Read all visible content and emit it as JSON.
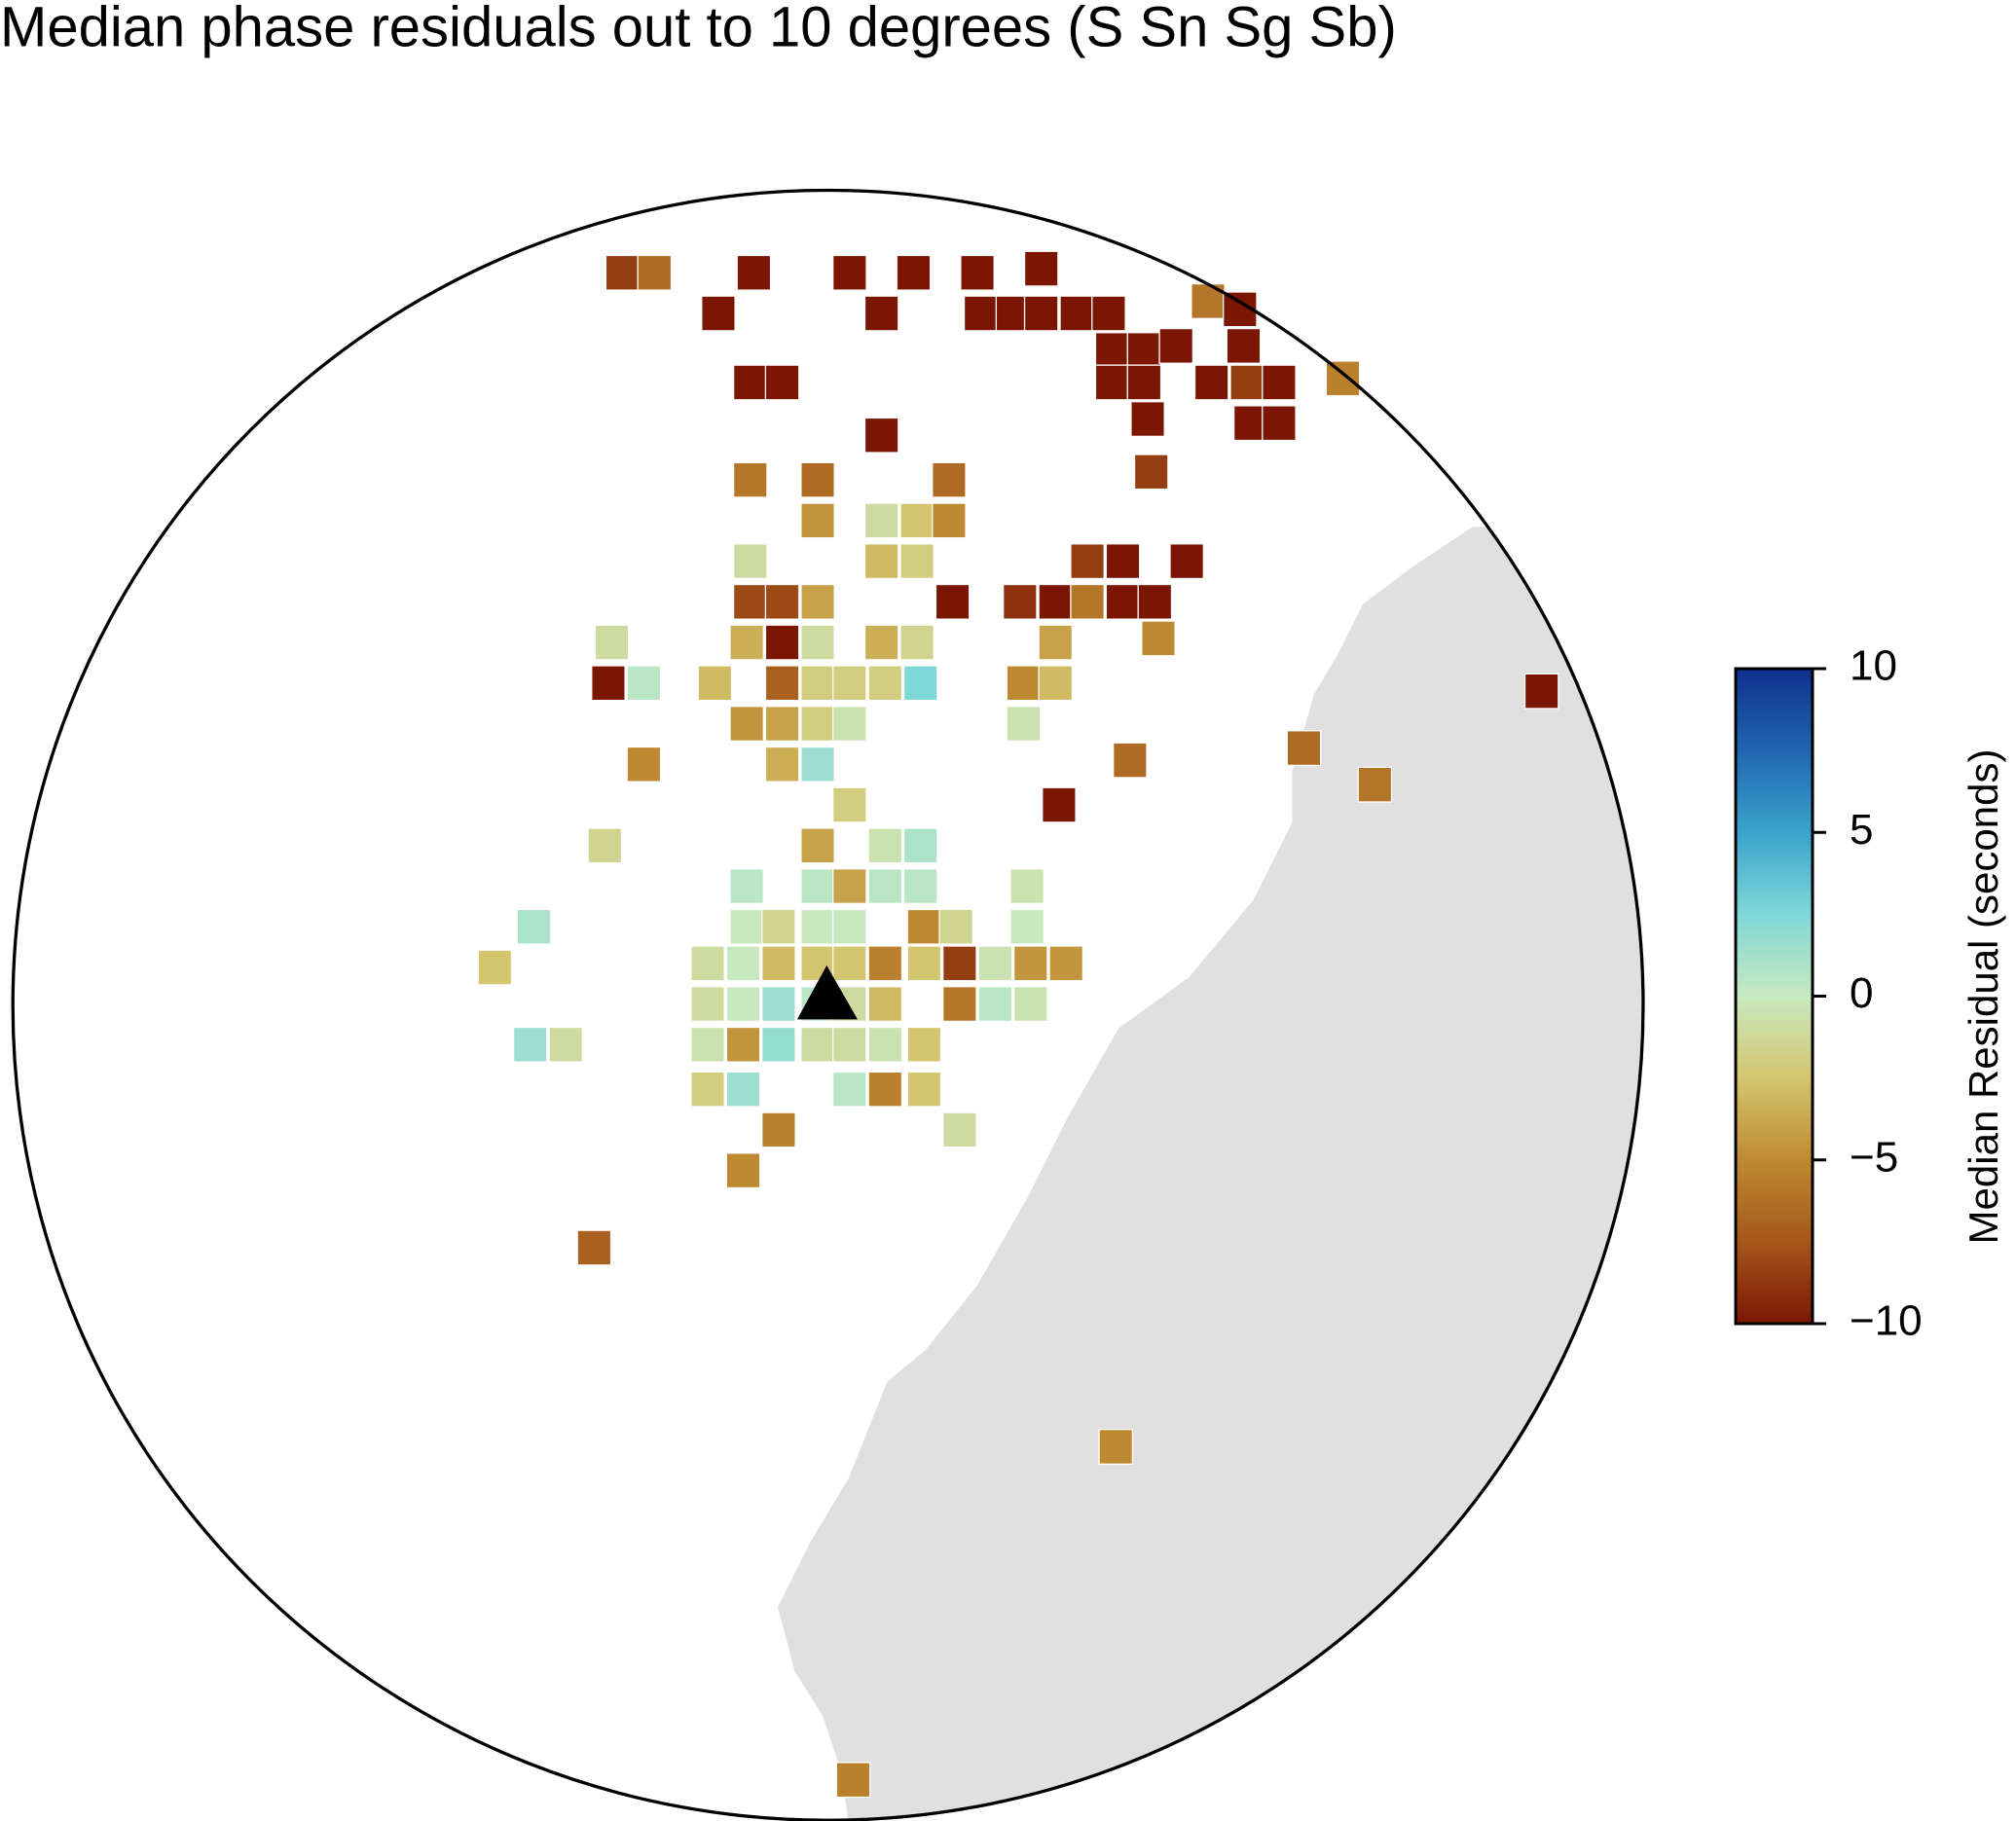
{
  "chart_data": {
    "type": "map",
    "title": "Median phase residuals out to 10 degrees (S Sn Sg Sb)",
    "colorbar_label": "Median Residual (seconds)",
    "clim": [
      -10,
      10
    ],
    "colorbar_ticks": [
      {
        "value": -10,
        "label": "−10"
      },
      {
        "value": -5,
        "label": "−5"
      },
      0,
      5,
      10
    ],
    "colormap": [
      "#7b1603",
      "#a5571b",
      "#be8a31",
      "#d4c66f",
      "#c8e9c0",
      "#7fd8d8",
      "#3ba3cc",
      "#2066b0",
      "#10308e"
    ],
    "land_color": "#e0e0e0",
    "cells": [
      {
        "col": -5.5,
        "row": -18,
        "value": -8.5
      },
      {
        "col": -4.6,
        "row": -18,
        "value": -6.5
      },
      {
        "col": -1.8,
        "row": -18,
        "value": -10
      },
      {
        "col": 0.9,
        "row": -18,
        "value": -10
      },
      {
        "col": 2.7,
        "row": -18,
        "value": -10
      },
      {
        "col": 4.5,
        "row": -18,
        "value": -10
      },
      {
        "col": 6.3,
        "row": -18.1,
        "value": -10
      },
      {
        "col": -2.8,
        "row": -17,
        "value": -10
      },
      {
        "col": 1.8,
        "row": -17,
        "value": -10
      },
      {
        "col": 4.6,
        "row": -17,
        "value": -10
      },
      {
        "col": 5.5,
        "row": -17,
        "value": -10
      },
      {
        "col": 6.3,
        "row": -17,
        "value": -10
      },
      {
        "col": 7.3,
        "row": -17,
        "value": -10
      },
      {
        "col": 8.2,
        "row": -17,
        "value": -10
      },
      {
        "col": 11.0,
        "row": -17.3,
        "value": -6
      },
      {
        "col": 11.9,
        "row": -17.1,
        "value": -10
      },
      {
        "col": 8.3,
        "row": -16.1,
        "value": -10
      },
      {
        "col": 9.2,
        "row": -16.1,
        "value": -10
      },
      {
        "col": 10.1,
        "row": -16.2,
        "value": -10
      },
      {
        "col": 12.0,
        "row": -16.2,
        "value": -10
      },
      {
        "col": -1.9,
        "row": -15.3,
        "value": -10
      },
      {
        "col": -1.0,
        "row": -15.3,
        "value": -10
      },
      {
        "col": 8.3,
        "row": -15.3,
        "value": -10
      },
      {
        "col": 9.2,
        "row": -15.3,
        "value": -10
      },
      {
        "col": 11.1,
        "row": -15.3,
        "value": -10
      },
      {
        "col": 12.1,
        "row": -15.3,
        "value": -8.5
      },
      {
        "col": 13.0,
        "row": -15.3,
        "value": -10
      },
      {
        "col": 14.8,
        "row": -15.4,
        "value": -5.5
      },
      {
        "col": 9.3,
        "row": -14.4,
        "value": -10
      },
      {
        "col": 12.2,
        "row": -14.3,
        "value": -10
      },
      {
        "col": 13.0,
        "row": -14.3,
        "value": -10
      },
      {
        "col": 1.8,
        "row": -14.0,
        "value": -10
      },
      {
        "col": 9.4,
        "row": -13.1,
        "value": -8.5
      },
      {
        "col": -1.9,
        "row": -12.9,
        "value": -6
      },
      {
        "col": 0,
        "row": -12.9,
        "value": -6.5
      },
      {
        "col": 3.7,
        "row": -12.9,
        "value": -6.5
      },
      {
        "col": 0,
        "row": -11.9,
        "value": -4.5
      },
      {
        "col": 1.8,
        "row": -11.9,
        "value": -1
      },
      {
        "col": 2.8,
        "row": -11.9,
        "value": -2.5
      },
      {
        "col": 3.7,
        "row": -11.9,
        "value": -5
      },
      {
        "col": -1.9,
        "row": -10.9,
        "value": -1
      },
      {
        "col": 1.8,
        "row": -10.9,
        "value": -3
      },
      {
        "col": 2.8,
        "row": -10.9,
        "value": -2
      },
      {
        "col": 7.6,
        "row": -10.9,
        "value": -8.5
      },
      {
        "col": 8.6,
        "row": -10.9,
        "value": -10
      },
      {
        "col": 10.4,
        "row": -10.9,
        "value": -10
      },
      {
        "col": -1.9,
        "row": -9.9,
        "value": -8
      },
      {
        "col": -1.0,
        "row": -9.9,
        "value": -8
      },
      {
        "col": 0,
        "row": -9.9,
        "value": -4
      },
      {
        "col": 3.8,
        "row": -9.9,
        "value": -10
      },
      {
        "col": 5.7,
        "row": -9.9,
        "value": -9
      },
      {
        "col": 6.7,
        "row": -9.9,
        "value": -10
      },
      {
        "col": 7.6,
        "row": -9.9,
        "value": -6
      },
      {
        "col": 8.6,
        "row": -9.9,
        "value": -10
      },
      {
        "col": 9.5,
        "row": -9.9,
        "value": -10
      },
      {
        "col": -5.8,
        "row": -8.9,
        "value": -1
      },
      {
        "col": -2.0,
        "row": -8.9,
        "value": -3.5
      },
      {
        "col": -1.0,
        "row": -8.9,
        "value": -10
      },
      {
        "col": 0,
        "row": -8.9,
        "value": -1
      },
      {
        "col": 1.8,
        "row": -8.9,
        "value": -3.5
      },
      {
        "col": 2.8,
        "row": -8.9,
        "value": -1.5
      },
      {
        "col": 6.7,
        "row": -8.9,
        "value": -4
      },
      {
        "col": 9.6,
        "row": -9.0,
        "value": -5
      },
      {
        "col": -5.9,
        "row": -7.9,
        "value": -10
      },
      {
        "col": -4.9,
        "row": -7.9,
        "value": 0.5
      },
      {
        "col": -2.9,
        "row": -7.9,
        "value": -3
      },
      {
        "col": -1.0,
        "row": -7.9,
        "value": -7
      },
      {
        "col": 0,
        "row": -7.9,
        "value": -2
      },
      {
        "col": 0.9,
        "row": -7.9,
        "value": -2
      },
      {
        "col": 1.9,
        "row": -7.9,
        "value": -2
      },
      {
        "col": 2.9,
        "row": -7.9,
        "value": 2.5
      },
      {
        "col": 5.8,
        "row": -7.9,
        "value": -5
      },
      {
        "col": 6.7,
        "row": -7.9,
        "value": -3
      },
      {
        "col": 20.4,
        "row": -7.7,
        "value": -10
      },
      {
        "col": -2.0,
        "row": -6.9,
        "value": -4.5
      },
      {
        "col": -1.0,
        "row": -6.9,
        "value": -4
      },
      {
        "col": 0,
        "row": -6.9,
        "value": -2
      },
      {
        "col": 0.9,
        "row": -6.9,
        "value": -0.5
      },
      {
        "col": 5.8,
        "row": -6.9,
        "value": -0.5
      },
      {
        "col": -4.9,
        "row": -5.9,
        "value": -5
      },
      {
        "col": -1.0,
        "row": -5.9,
        "value": -3.5
      },
      {
        "col": 0,
        "row": -5.9,
        "value": 1.5
      },
      {
        "col": 8.8,
        "row": -6.0,
        "value": -6.5
      },
      {
        "col": 13.7,
        "row": -6.3,
        "value": -6.5
      },
      {
        "col": 15.7,
        "row": -5.4,
        "value": -6
      },
      {
        "col": 0.9,
        "row": -4.9,
        "value": -2
      },
      {
        "col": 6.8,
        "row": -4.9,
        "value": -10
      },
      {
        "col": -6.0,
        "row": -3.9,
        "value": -1.5
      },
      {
        "col": 0,
        "row": -3.9,
        "value": -4
      },
      {
        "col": 1.9,
        "row": -3.9,
        "value": -0.5
      },
      {
        "col": 2.9,
        "row": -3.9,
        "value": 1
      },
      {
        "col": -2.0,
        "row": -2.9,
        "value": 0.5
      },
      {
        "col": 0,
        "row": -2.9,
        "value": 0.5
      },
      {
        "col": 0.9,
        "row": -2.9,
        "value": -4
      },
      {
        "col": 1.9,
        "row": -2.9,
        "value": 0.5
      },
      {
        "col": 2.9,
        "row": -2.9,
        "value": 0.5
      },
      {
        "col": 5.9,
        "row": -2.9,
        "value": -0.5
      },
      {
        "col": -8.0,
        "row": -1.9,
        "value": 1
      },
      {
        "col": -2.0,
        "row": -1.9,
        "value": 0
      },
      {
        "col": -1.1,
        "row": -1.9,
        "value": -1.5
      },
      {
        "col": 0,
        "row": -1.9,
        "value": 0
      },
      {
        "col": 0.9,
        "row": -1.9,
        "value": 0
      },
      {
        "col": 3.0,
        "row": -1.9,
        "value": -5
      },
      {
        "col": 3.9,
        "row": -1.9,
        "value": -1.5
      },
      {
        "col": 5.9,
        "row": -1.9,
        "value": 0
      },
      {
        "col": -9.1,
        "row": -0.9,
        "value": -2.5
      },
      {
        "col": -3.1,
        "row": -1.0,
        "value": -1
      },
      {
        "col": -2.1,
        "row": -1.0,
        "value": 0
      },
      {
        "col": -1.1,
        "row": -1.0,
        "value": -3
      },
      {
        "col": 0,
        "row": -1.0,
        "value": -2.5
      },
      {
        "col": 0.9,
        "row": -1.0,
        "value": -2.5
      },
      {
        "col": 1.9,
        "row": -1.0,
        "value": -5.5
      },
      {
        "col": 3.0,
        "row": -1.0,
        "value": -2.5
      },
      {
        "col": 4.0,
        "row": -1.0,
        "value": -8.5
      },
      {
        "col": 5.0,
        "row": -1.0,
        "value": -0.5
      },
      {
        "col": 6.0,
        "row": -1.0,
        "value": -4.5
      },
      {
        "col": 7.0,
        "row": -1.0,
        "value": -4.5
      },
      {
        "col": -3.1,
        "row": 0,
        "value": -1
      },
      {
        "col": -2.1,
        "row": 0,
        "value": 0
      },
      {
        "col": -1.1,
        "row": 0,
        "value": 1.5
      },
      {
        "col": 0,
        "row": 0,
        "value": 0.5
      },
      {
        "col": 0.9,
        "row": 0,
        "value": -1
      },
      {
        "col": 1.9,
        "row": 0,
        "value": -3
      },
      {
        "col": 4.0,
        "row": 0,
        "value": -6
      },
      {
        "col": 5.0,
        "row": 0,
        "value": 0.5
      },
      {
        "col": 6.0,
        "row": 0,
        "value": -0.5
      },
      {
        "col": -8.1,
        "row": 1.0,
        "value": 1.5
      },
      {
        "col": -7.1,
        "row": 1.0,
        "value": -1
      },
      {
        "col": -3.1,
        "row": 1.0,
        "value": -0.5
      },
      {
        "col": -2.1,
        "row": 1.0,
        "value": -4.5
      },
      {
        "col": -1.1,
        "row": 1.0,
        "value": 1.8
      },
      {
        "col": 0,
        "row": 1.0,
        "value": -1
      },
      {
        "col": 0.9,
        "row": 1.0,
        "value": -1
      },
      {
        "col": 1.9,
        "row": 1.0,
        "value": -0.5
      },
      {
        "col": 3.0,
        "row": 1.0,
        "value": -2.5
      },
      {
        "col": -3.1,
        "row": 2.1,
        "value": -2
      },
      {
        "col": -2.1,
        "row": 2.1,
        "value": 1.5
      },
      {
        "col": 0.9,
        "row": 2.1,
        "value": 0.5
      },
      {
        "col": 1.9,
        "row": 2.1,
        "value": -5.5
      },
      {
        "col": 3.0,
        "row": 2.1,
        "value": -2.5
      },
      {
        "col": -1.1,
        "row": 3.1,
        "value": -5.5
      },
      {
        "col": 4.0,
        "row": 3.1,
        "value": -1
      },
      {
        "col": -2.1,
        "row": 4.1,
        "value": -5
      },
      {
        "col": -6.3,
        "row": 6.0,
        "value": -7
      },
      {
        "col": 8.4,
        "row": 10.9,
        "value": -5
      },
      {
        "col": 1.0,
        "row": 19.1,
        "value": -5.5
      }
    ]
  }
}
